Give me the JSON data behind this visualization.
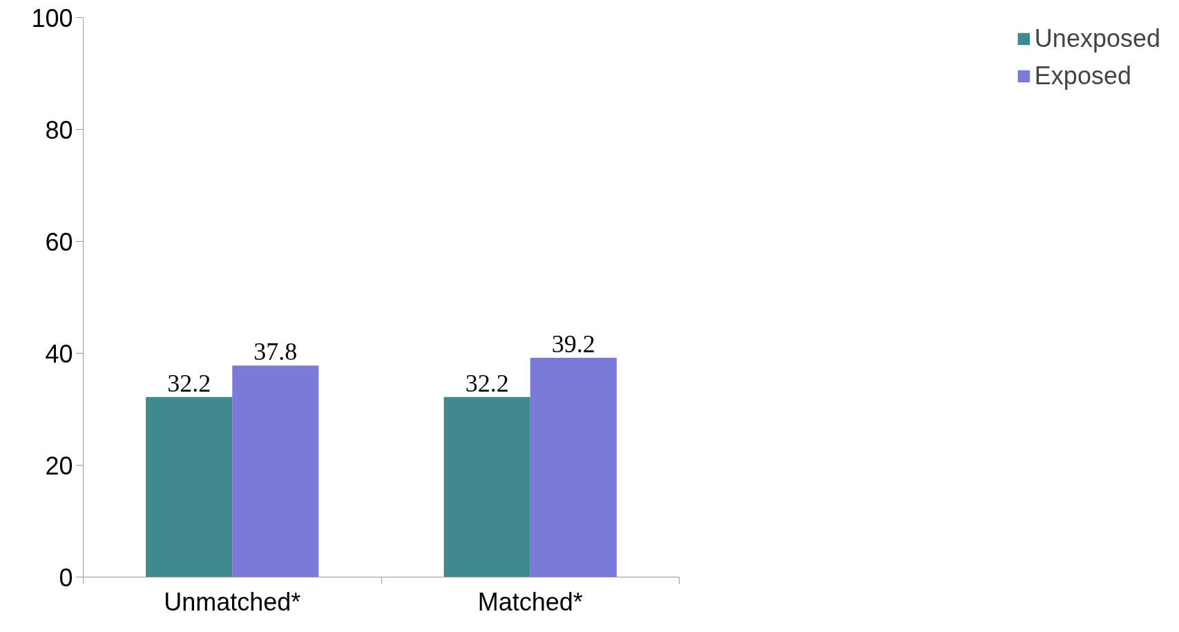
{
  "chart_data": {
    "type": "bar",
    "categories": [
      "Unmatched*",
      "Matched*"
    ],
    "series": [
      {
        "name": "Unexposed",
        "color": "#3e8a8e",
        "values": [
          32.2,
          32.2
        ]
      },
      {
        "name": "Exposed",
        "color": "#7a7ad8",
        "values": [
          37.8,
          39.2
        ]
      }
    ],
    "ylim": [
      0,
      100
    ],
    "yticks": [
      0,
      20,
      40,
      60,
      80,
      100
    ],
    "data_labels": true,
    "legend": "right",
    "grid": false
  }
}
